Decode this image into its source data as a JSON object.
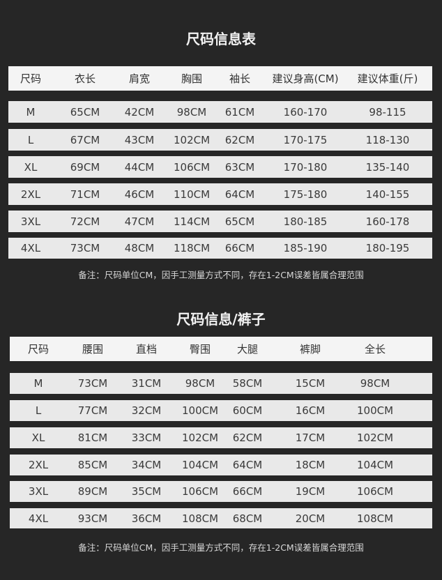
{
  "tops": {
    "title": "尺码信息表",
    "headers": [
      "尺码",
      "衣长",
      "肩宽",
      "胸围",
      "袖长",
      "建议身高(CM)",
      "建议体重(斤)"
    ],
    "rows": [
      [
        "M",
        "65CM",
        "42CM",
        "98CM",
        "61CM",
        "160-170",
        "98-115"
      ],
      [
        "L",
        "67CM",
        "43CM",
        "102CM",
        "62CM",
        "170-175",
        "118-130"
      ],
      [
        "XL",
        "69CM",
        "44CM",
        "106CM",
        "63CM",
        "170-180",
        "135-140"
      ],
      [
        "2XL",
        "71CM",
        "46CM",
        "110CM",
        "64CM",
        "175-180",
        "140-155"
      ],
      [
        "3XL",
        "72CM",
        "47CM",
        "114CM",
        "65CM",
        "180-185",
        "160-178"
      ],
      [
        "4XL",
        "73CM",
        "48CM",
        "118CM",
        "66CM",
        "185-190",
        "180-195"
      ]
    ],
    "note": "备注：尺码单位CM，因手工测量方式不同，存在1-2CM误差皆属合理范围"
  },
  "pants": {
    "title": "尺码信息/裤子",
    "headers": [
      "尺码",
      "腰围",
      "直档",
      "臀围",
      "大腿",
      "裤脚",
      "全长"
    ],
    "rows": [
      [
        "M",
        "73CM",
        "31CM",
        "98CM",
        "58CM",
        "15CM",
        "98CM"
      ],
      [
        "L",
        "77CM",
        "32CM",
        "100CM",
        "60CM",
        "16CM",
        "100CM"
      ],
      [
        "XL",
        "81CM",
        "33CM",
        "102CM",
        "62CM",
        "17CM",
        "102CM"
      ],
      [
        "2XL",
        "85CM",
        "34CM",
        "104CM",
        "64CM",
        "18CM",
        "104CM"
      ],
      [
        "3XL",
        "89CM",
        "35CM",
        "106CM",
        "66CM",
        "19CM",
        "106CM"
      ],
      [
        "4XL",
        "93CM",
        "36CM",
        "108CM",
        "68CM",
        "20CM",
        "108CM"
      ]
    ],
    "note": "备注：尺码单位CM，因手工测量方式不同，存在1-2CM误差皆属合理范围"
  },
  "colors": {
    "background": "#262626",
    "row": "#e9e9e9",
    "header_row": "#f4f4f4"
  }
}
